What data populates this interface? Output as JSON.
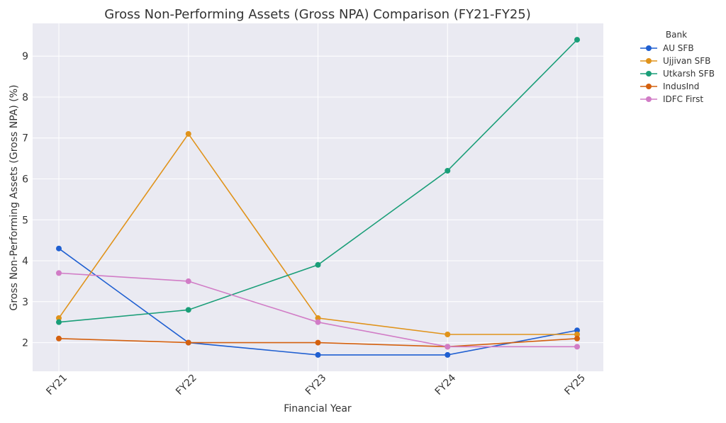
{
  "chart_data": {
    "type": "line",
    "title": "Gross Non-Performing Assets (Gross NPA) Comparison (FY21-FY25)",
    "xlabel": "Financial Year",
    "ylabel": "Gross Non-Performing Assets (Gross NPA) (%)",
    "categories": [
      "FY21",
      "FY22",
      "FY23",
      "FY24",
      "FY25"
    ],
    "ylim": [
      1.3,
      9.8
    ],
    "yticks": [
      2,
      3,
      4,
      5,
      6,
      7,
      8,
      9
    ],
    "grid": true,
    "legend": {
      "title": "Bank",
      "placement": "outside-top-right"
    },
    "series": [
      {
        "name": "AU SFB",
        "color": "#1f5fd1",
        "values": [
          4.3,
          2.0,
          1.7,
          1.7,
          2.3
        ]
      },
      {
        "name": "Ujjivan SFB",
        "color": "#e0931b",
        "values": [
          2.6,
          7.1,
          2.6,
          2.2,
          2.2
        ]
      },
      {
        "name": "Utkarsh SFB",
        "color": "#1a9e78",
        "values": [
          2.5,
          2.8,
          3.9,
          6.2,
          9.4
        ]
      },
      {
        "name": "IndusInd",
        "color": "#d4600e",
        "values": [
          2.1,
          2.0,
          2.0,
          1.9,
          2.1
        ]
      },
      {
        "name": "IDFC First",
        "color": "#d17cc6",
        "values": [
          3.7,
          3.5,
          2.5,
          1.9,
          1.9
        ]
      }
    ]
  }
}
